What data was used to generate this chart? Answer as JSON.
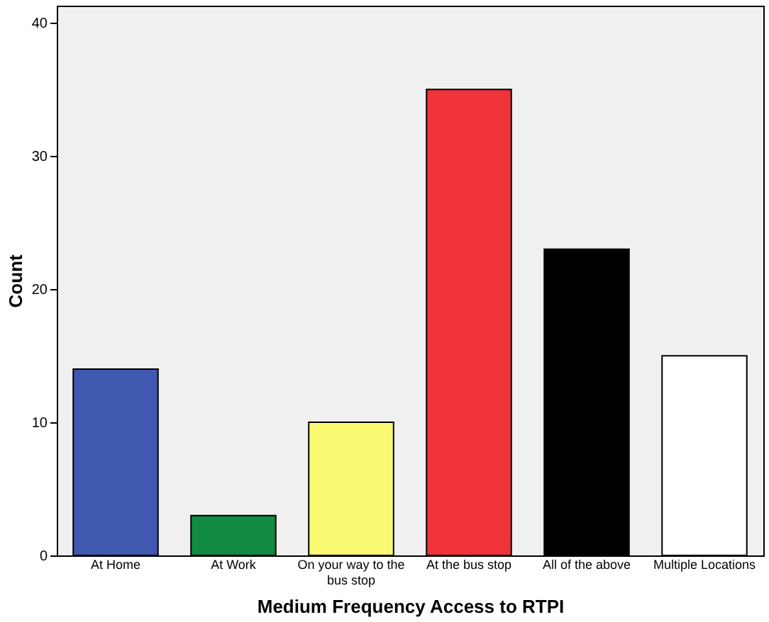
{
  "chart_data": {
    "type": "bar",
    "xlabel": "Medium Frequency Access to RTPI",
    "ylabel": "Count",
    "categories": [
      "At Home",
      "At Work",
      "On your way to the bus stop",
      "At the bus stop",
      "All of the above",
      "Multiple Locations"
    ],
    "values": [
      14,
      3,
      10,
      35,
      23,
      15
    ],
    "colors": [
      "#3f58b0",
      "#118a43",
      "#fafa73",
      "#ef3339",
      "#000000",
      "#ffffff"
    ],
    "ylim": [
      0,
      41.3
    ],
    "yticks": [
      0,
      10,
      20,
      30,
      40
    ],
    "grid": false
  }
}
